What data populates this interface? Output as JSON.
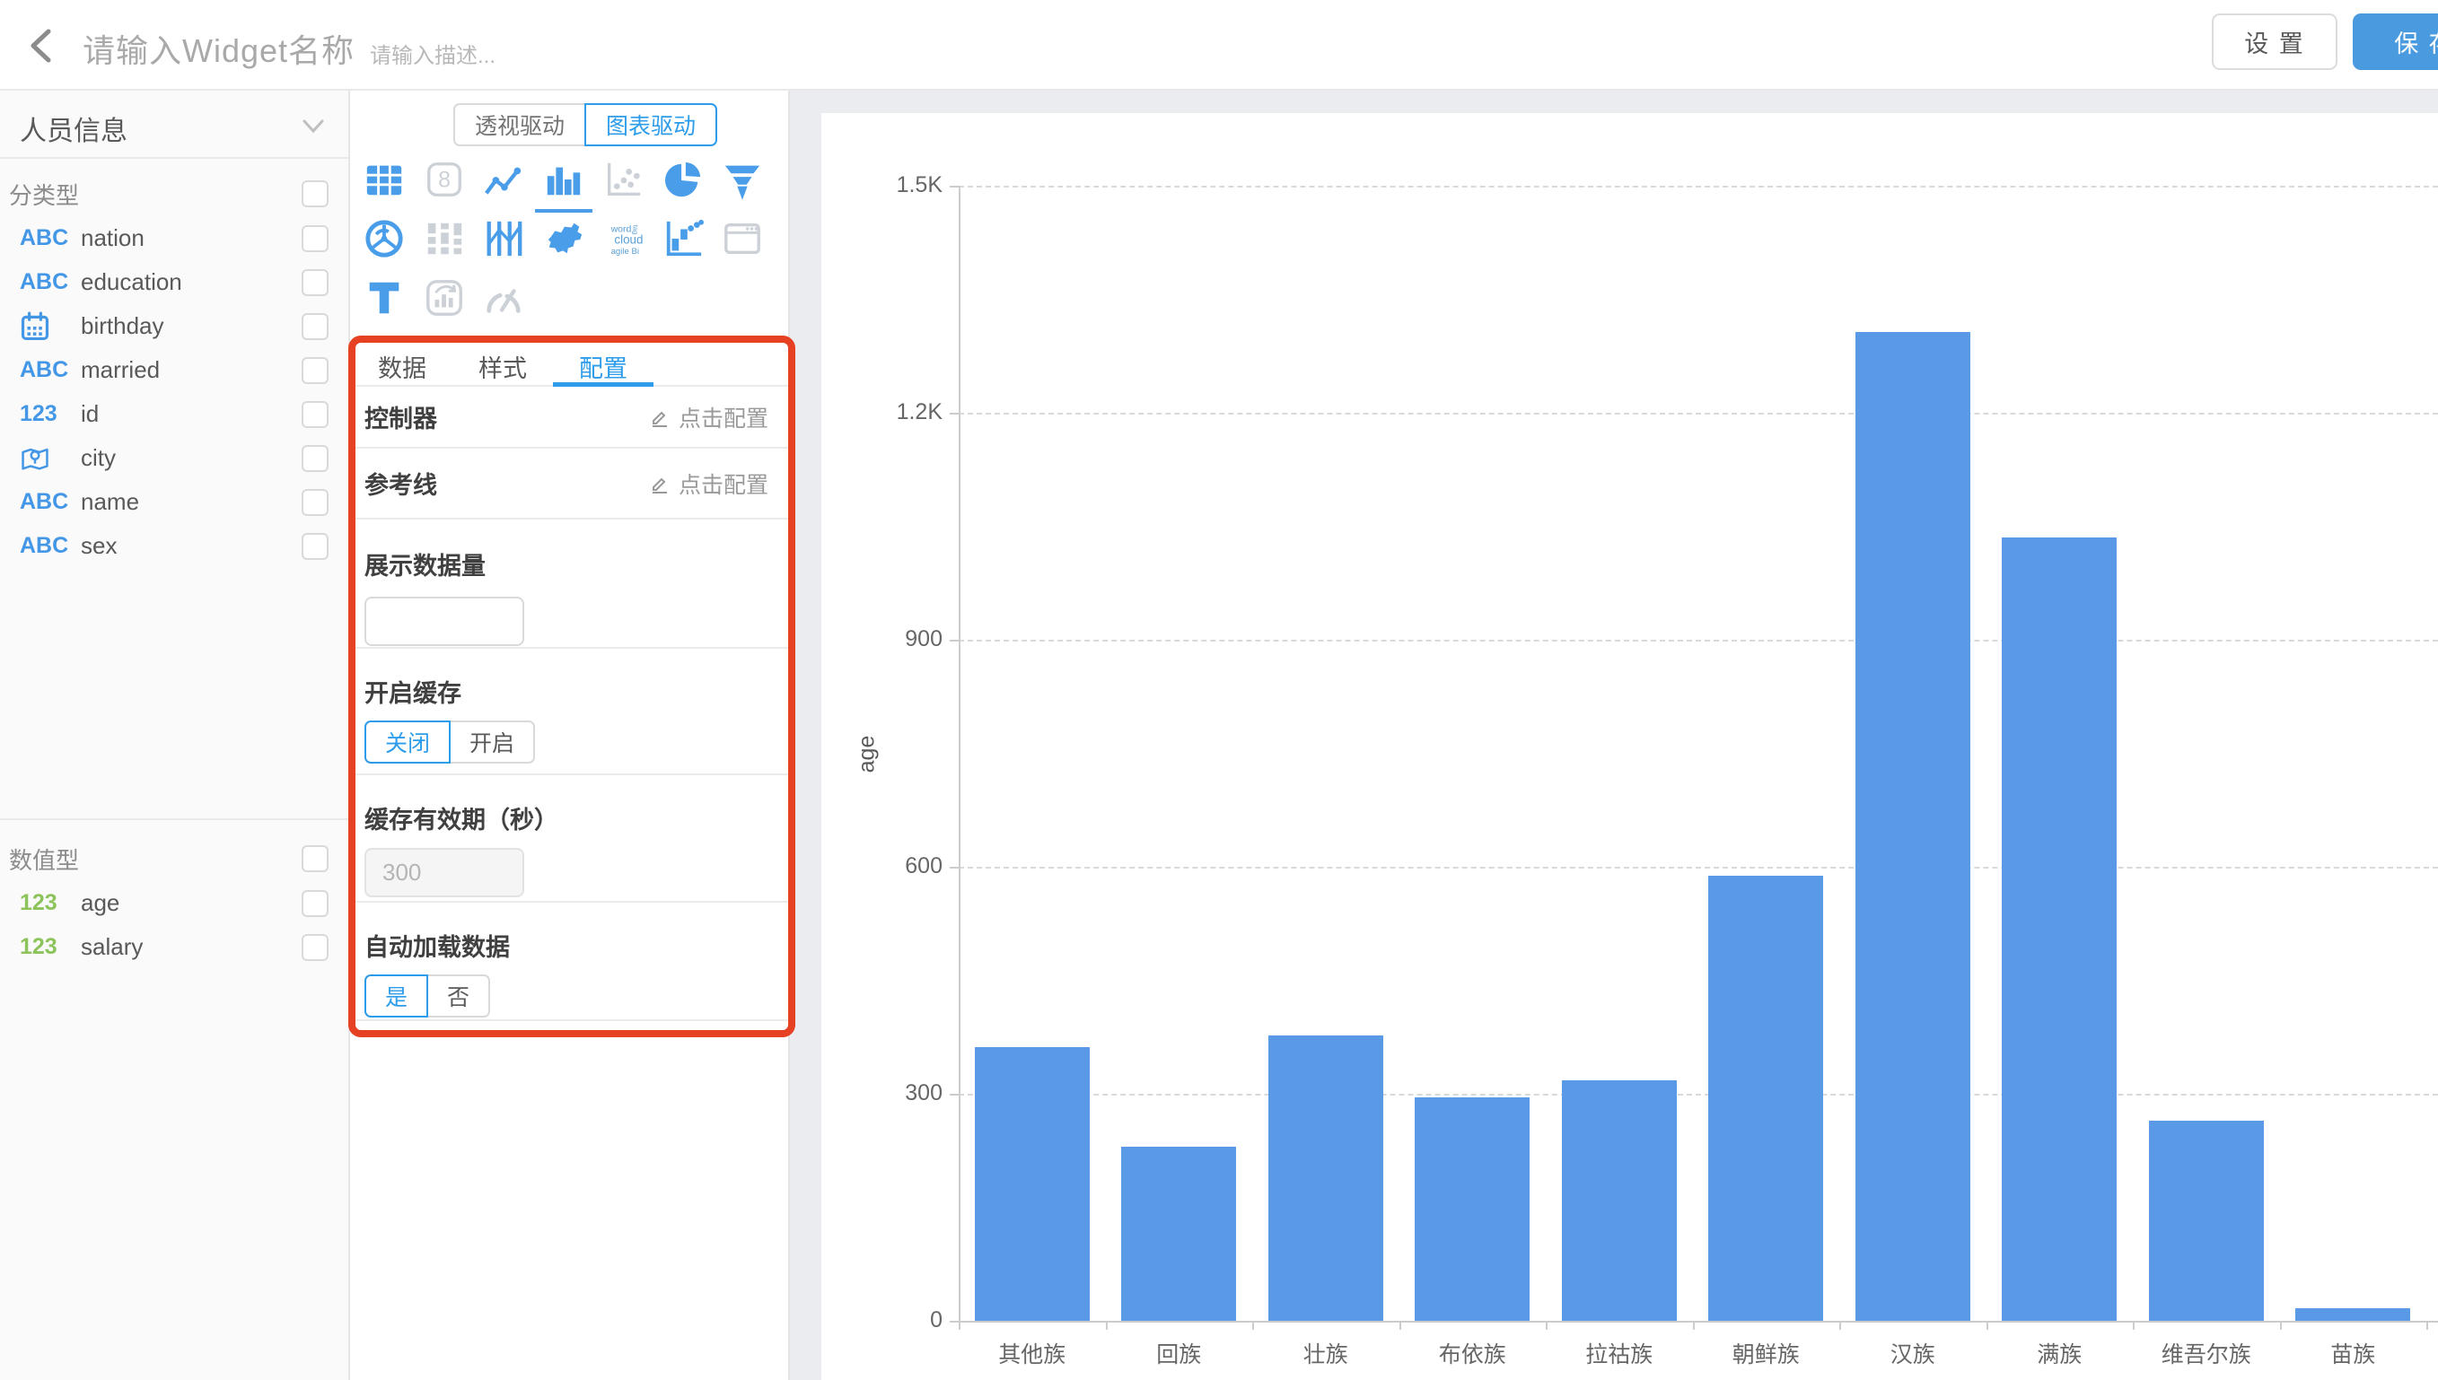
{
  "topbar": {
    "title_placeholder": "请输入Widget名称",
    "desc_placeholder": "请输入描述...",
    "settings_label": "设 置",
    "save_label": "保 存"
  },
  "sidebar": {
    "dataset_name": "人员信息",
    "category_section": {
      "label": "分类型",
      "fields": [
        {
          "name": "nation",
          "icon": "abc-icon"
        },
        {
          "name": "education",
          "icon": "abc-icon"
        },
        {
          "name": "birthday",
          "icon": "calendar-icon"
        },
        {
          "name": "married",
          "icon": "abc-icon"
        },
        {
          "name": "id",
          "icon": "number-blue-icon"
        },
        {
          "name": "city",
          "icon": "map-pin-icon"
        },
        {
          "name": "name",
          "icon": "abc-icon"
        },
        {
          "name": "sex",
          "icon": "abc-icon"
        }
      ]
    },
    "numeric_section": {
      "label": "数值型",
      "fields": [
        {
          "name": "age",
          "icon": "number-green-icon"
        },
        {
          "name": "salary",
          "icon": "number-green-icon"
        }
      ]
    }
  },
  "panel": {
    "driver_toggle": {
      "options": [
        "透视驱动",
        "图表驱动"
      ],
      "active": "图表驱动"
    },
    "chart_types": [
      {
        "icon": "table-icon",
        "state": "enabled"
      },
      {
        "icon": "scorecard-icon",
        "state": "disabled"
      },
      {
        "icon": "line-chart-icon",
        "state": "enabled"
      },
      {
        "icon": "bar-chart-icon",
        "state": "selected"
      },
      {
        "icon": "scatter-icon",
        "state": "disabled"
      },
      {
        "icon": "pie-icon",
        "state": "enabled"
      },
      {
        "icon": "funnel-icon",
        "state": "enabled"
      },
      {
        "icon": "radar-icon",
        "state": "enabled"
      },
      {
        "icon": "sankey-icon",
        "state": "disabled"
      },
      {
        "icon": "parallel-icon",
        "state": "enabled"
      },
      {
        "icon": "china-map-icon",
        "state": "enabled"
      },
      {
        "icon": "word-cloud-icon",
        "state": "enabled"
      },
      {
        "icon": "waterfall-icon",
        "state": "enabled"
      },
      {
        "icon": "iframe-icon",
        "state": "disabled"
      },
      {
        "icon": "text-icon",
        "state": "enabled"
      },
      {
        "icon": "rich-text-icon",
        "state": "disabled"
      },
      {
        "icon": "gauge-icon",
        "state": "disabled"
      }
    ],
    "tabs": [
      {
        "label": "数据",
        "active": false
      },
      {
        "label": "样式",
        "active": false
      },
      {
        "label": "配置",
        "active": true
      }
    ],
    "sections": {
      "controller": {
        "label": "控制器",
        "action": "点击配置"
      },
      "reference_line": {
        "label": "参考线",
        "action": "点击配置"
      },
      "display_count": {
        "label": "展示数据量",
        "value": ""
      },
      "cache": {
        "label": "开启缓存",
        "options": [
          "关闭",
          "开启"
        ],
        "selected": "关闭"
      },
      "cache_expire": {
        "label": "缓存有效期（秒）",
        "value": "300",
        "disabled": true
      },
      "auto_load": {
        "label": "自动加载数据",
        "options": [
          "是",
          "否"
        ],
        "selected": "是"
      }
    }
  },
  "chart_data": {
    "type": "bar",
    "title": "",
    "xlabel": "",
    "ylabel": "age",
    "categories": [
      "其他族",
      "回族",
      "壮族",
      "布依族",
      "拉祜族",
      "朝鲜族",
      "汉族",
      "满族",
      "维吾尔族",
      "苗族"
    ],
    "values": [
      362,
      230,
      377,
      295,
      318,
      588,
      1307,
      1035,
      264,
      17
    ],
    "ylim": [
      0,
      1500
    ],
    "yticks": [
      "0",
      "300",
      "600",
      "900",
      "1.2K",
      "1.5K"
    ],
    "ytick_values": [
      0,
      300,
      600,
      900,
      1200,
      1500
    ],
    "grid": "dashed-horizontal",
    "legend": "none",
    "bar_color": "#5a99e6"
  },
  "colors": {
    "accent": "#2d9cea",
    "icon_blue": "#4a9de8",
    "bar_blue": "#5a99e6",
    "save_button": "#4a9ae0",
    "annotation_red": "#e64123",
    "numeric_green": "#8cc35a"
  }
}
